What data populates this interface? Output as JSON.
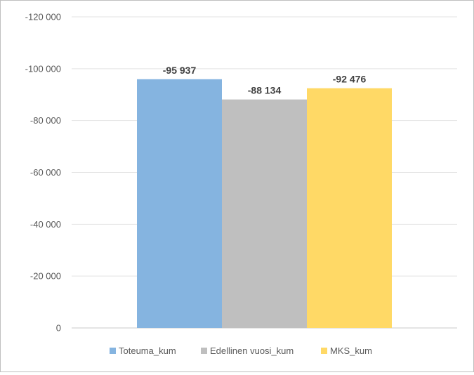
{
  "chart_data": {
    "type": "bar",
    "title": "",
    "xlabel": "",
    "ylabel": "",
    "ylim": [
      0,
      -120000
    ],
    "yticks": [
      0,
      -20000,
      -40000,
      -60000,
      -80000,
      -100000,
      -120000
    ],
    "ytick_labels": [
      "0",
      "-20 000",
      "-40 000",
      "-60 000",
      "-80 000",
      "-100 000",
      "-120 000"
    ],
    "grid": true,
    "legend_position": "bottom",
    "categories": [
      ""
    ],
    "series": [
      {
        "name": "Toteuma_kum",
        "values": [
          -95937
        ],
        "label": "-95 937",
        "color": "#85b4e0"
      },
      {
        "name": "Edellinen vuosi_kum",
        "values": [
          -88134
        ],
        "label": "-88 134",
        "color": "#bfbfbf"
      },
      {
        "name": "MKS_kum",
        "values": [
          -92476
        ],
        "label": "-92 476",
        "color": "#ffd966"
      }
    ]
  }
}
